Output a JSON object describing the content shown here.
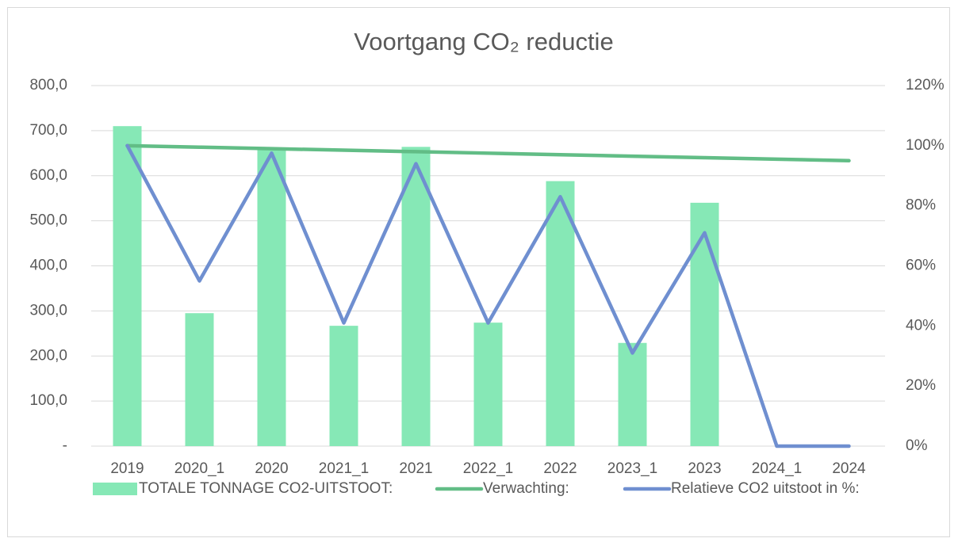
{
  "chart_data": {
    "type": "bar-line",
    "title": "Voortgang CO₂ reductie",
    "categories": [
      "2019",
      "2020_1",
      "2020",
      "2021_1",
      "2021",
      "2022_1",
      "2022",
      "2023_1",
      "2023",
      "2024_1",
      "2024"
    ],
    "series": [
      {
        "name": "TOTALE TONNAGE CO2-UITSTOOT:",
        "type": "bar",
        "color": "#86e8b6",
        "values": [
          710,
          295,
          662,
          267,
          664,
          274,
          588,
          229,
          540,
          0,
          0
        ]
      },
      {
        "name": "Verwachting:",
        "type": "line",
        "axis": "y2",
        "color": "#62bd86",
        "values": [
          100,
          99.5,
          99,
          98.5,
          98,
          97.5,
          97,
          96.5,
          96,
          95.5,
          95
        ]
      },
      {
        "name": "Relatieve CO2 uitstoot in %:",
        "type": "line",
        "axis": "y2",
        "color": "#6f8fd0",
        "values": [
          100,
          55,
          97.5,
          41,
          94,
          41,
          83,
          31,
          71,
          0,
          0
        ]
      }
    ],
    "ylim": [
      0,
      800
    ],
    "yticks": [
      {
        "value": 0,
        "label": "-"
      },
      {
        "value": 100,
        "label": "100,0"
      },
      {
        "value": 200,
        "label": "200,0"
      },
      {
        "value": 300,
        "label": "300,0"
      },
      {
        "value": 400,
        "label": "400,0"
      },
      {
        "value": 500,
        "label": "500,0"
      },
      {
        "value": 600,
        "label": "600,0"
      },
      {
        "value": 700,
        "label": "700,0"
      },
      {
        "value": 800,
        "label": "800,0"
      }
    ],
    "y2lim": [
      0,
      120
    ],
    "y2ticks": [
      {
        "value": 0,
        "label": "0%"
      },
      {
        "value": 20,
        "label": "20%"
      },
      {
        "value": 40,
        "label": "40%"
      },
      {
        "value": 60,
        "label": "60%"
      },
      {
        "value": 80,
        "label": "80%"
      },
      {
        "value": 100,
        "label": "100%"
      },
      {
        "value": 120,
        "label": "120%"
      }
    ],
    "grid": true,
    "legend": "bottom"
  }
}
